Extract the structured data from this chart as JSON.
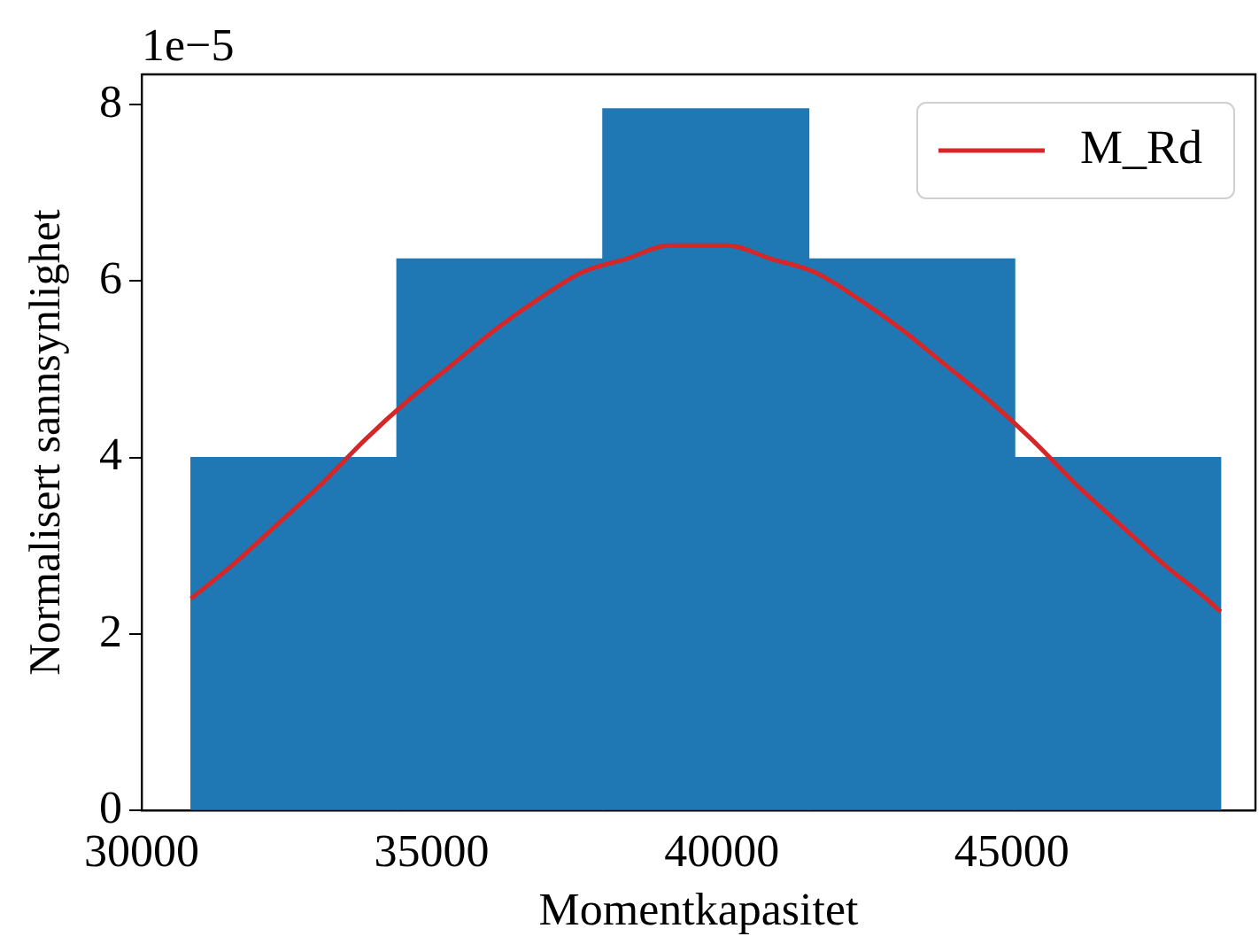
{
  "chart_data": {
    "type": "histogram",
    "xlabel": "Momentkapasitet",
    "ylabel": "Normalisert sannsynlighet",
    "annotations": [
      "1e−5"
    ],
    "xlim": [
      30000,
      49200
    ],
    "xticks": [
      30000,
      35000,
      40000,
      45000
    ],
    "ylim": [
      0,
      8.34
    ],
    "yticks": [
      0,
      2,
      4,
      6,
      8
    ],
    "grid": false,
    "legend": "top right",
    "series": [
      {
        "color": "#1f77b4",
        "bins": [
          30850,
          34400,
          37950,
          41500,
          45050,
          48600
        ],
        "values": [
          4.0,
          6.25,
          7.95,
          6.25,
          4.0
        ]
      },
      {
        "type": "line",
        "name": "M_Rd",
        "color": "#d62728",
        "x": [
          30850,
          31600,
          32350,
          33100,
          33850,
          34600,
          35350,
          36100,
          36850,
          37600,
          38350,
          39100,
          39600,
          40100,
          40850,
          41600,
          42350,
          43100,
          43850,
          44600,
          45350,
          46100,
          46850,
          47600,
          48350,
          48600
        ],
        "values": [
          2.4,
          2.8,
          3.25,
          3.7,
          4.2,
          4.65,
          5.05,
          5.45,
          5.8,
          6.1,
          6.25,
          6.4,
          6.4,
          6.4,
          6.25,
          6.1,
          5.8,
          5.45,
          5.05,
          4.65,
          4.2,
          3.7,
          3.25,
          2.8,
          2.4,
          2.25
        ]
      }
    ]
  }
}
